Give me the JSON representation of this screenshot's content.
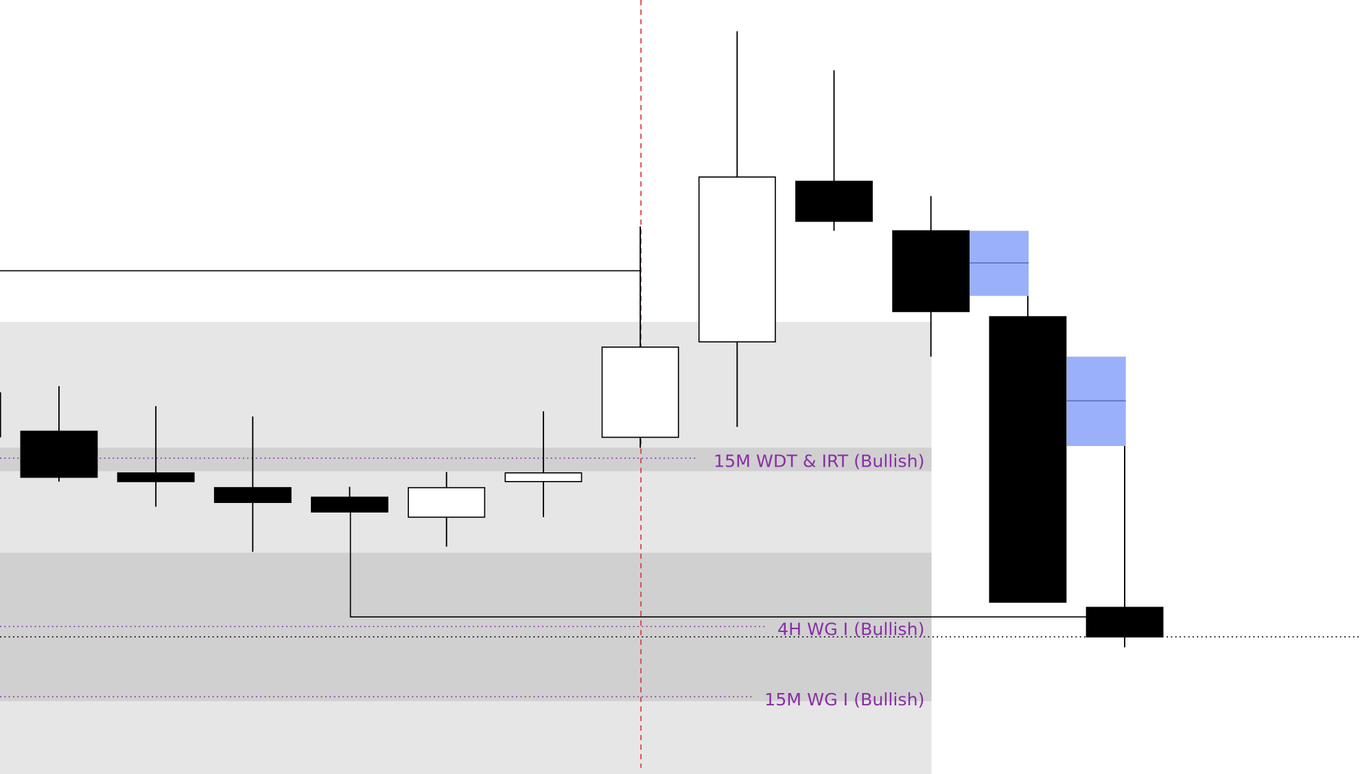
{
  "chart_data": {
    "type": "candlestick",
    "title": "",
    "xlabel": "",
    "ylabel": "",
    "ylim": [
      0,
      892
    ],
    "grid": false,
    "colors": {
      "bull_body": "#ffffff",
      "bear_body": "#000000",
      "zone_light": "#e6e6e6",
      "zone_dark": "#d0d0d0",
      "gap_box": "#9ab0f8",
      "gap_mid": "#5a6fbf",
      "label": "#8a2ea6",
      "divider": "#e03030"
    },
    "candles": [
      {
        "o": 395,
        "h": 447,
        "l": 337,
        "c": 342
      },
      {
        "o": 347,
        "h": 424,
        "l": 308,
        "c": 337
      },
      {
        "o": 330,
        "h": 412,
        "l": 256,
        "c": 313
      },
      {
        "o": 319,
        "h": 331,
        "l": 302,
        "c": 302
      },
      {
        "o": 296,
        "h": 348,
        "l": 262,
        "c": 330
      },
      {
        "o": 337,
        "h": 418,
        "l": 296,
        "c": 347
      },
      {
        "o": 388,
        "h": 631,
        "l": 376,
        "c": 492
      },
      {
        "o": 498,
        "h": 856,
        "l": 400,
        "c": 688
      },
      {
        "o": 683,
        "h": 811,
        "l": 626,
        "c": 637
      },
      {
        "o": 626,
        "h": 666,
        "l": 481,
        "c": 533
      },
      {
        "o": 527,
        "h": 551,
        "l": 198,
        "c": 198
      },
      {
        "o": 192,
        "h": 378,
        "l": 146,
        "c": 158
      }
    ],
    "zones": [
      {
        "from": 0,
        "to": 521,
        "shade": "light"
      },
      {
        "from": 349,
        "to": 376,
        "shade": "dark"
      },
      {
        "from": 84,
        "to": 255,
        "shade": "dark"
      }
    ],
    "levels": [
      {
        "label": "15M WDT & IRT (Bullish)",
        "price": 364
      },
      {
        "label": "4H WG I (Bullish)",
        "price": 170
      },
      {
        "label": "15M WG I (Bullish)",
        "price": 89
      }
    ],
    "horizontal_lines": [
      580,
      181
    ],
    "dotted_level": 158,
    "gaps": [
      {
        "top": 626,
        "bottom": 551,
        "mid": 589
      },
      {
        "top": 481,
        "bottom": 378,
        "mid": 430
      }
    ]
  }
}
